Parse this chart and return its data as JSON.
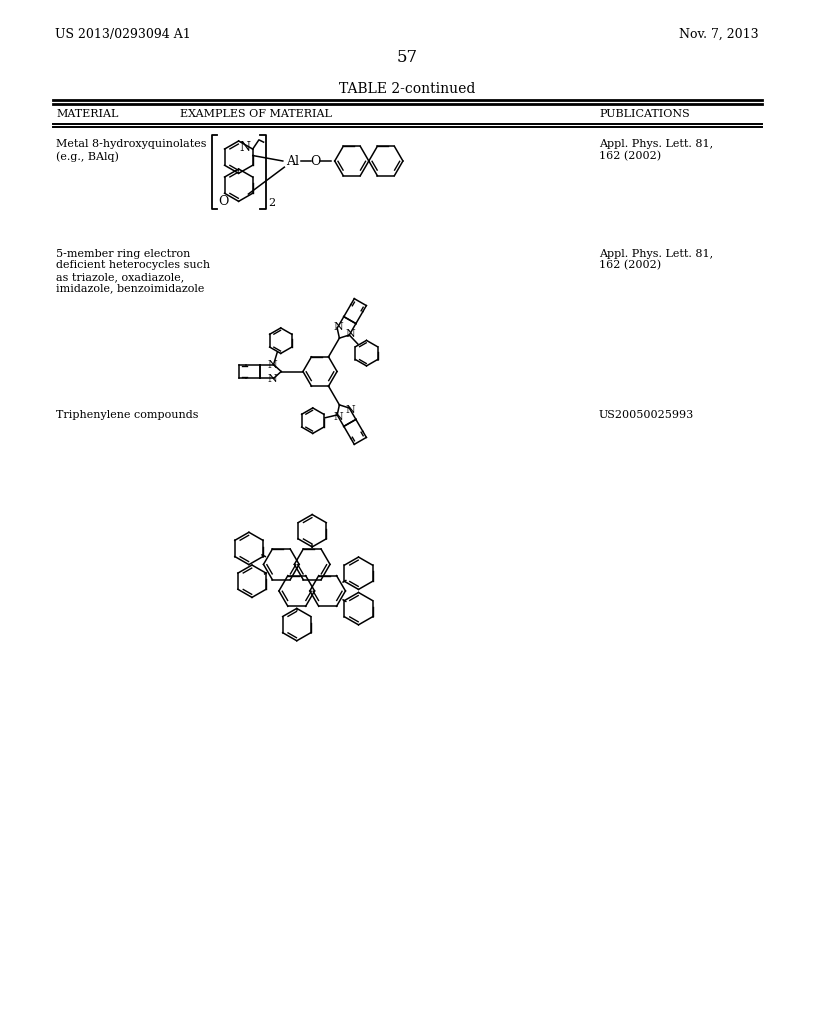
{
  "background_color": "#ffffff",
  "header_left": "US 2013/0293094 A1",
  "header_right": "Nov. 7, 2013",
  "page_number": "57",
  "table_title": "TABLE 2-continued",
  "col1_header": "MATERIAL",
  "col2_header": "EXAMPLES OF MATERIAL",
  "col3_header": "PUBLICATIONS",
  "row1_material": "Metal 8-hydroxyquinolates\n(e.g., BAlq)",
  "row1_publication": "Appl. Phys. Lett. 81,\n162 (2002)",
  "row2_material": "5-member ring electron\ndeficient heterocycles such\nas triazole, oxadiazole,\nimidazole, benzoimidazole",
  "row2_publication": "Appl. Phys. Lett. 81,\n162 (2002)",
  "row3_material": "Triphenylene compounds",
  "row3_publication": "US20050025993",
  "lw": 1.1
}
